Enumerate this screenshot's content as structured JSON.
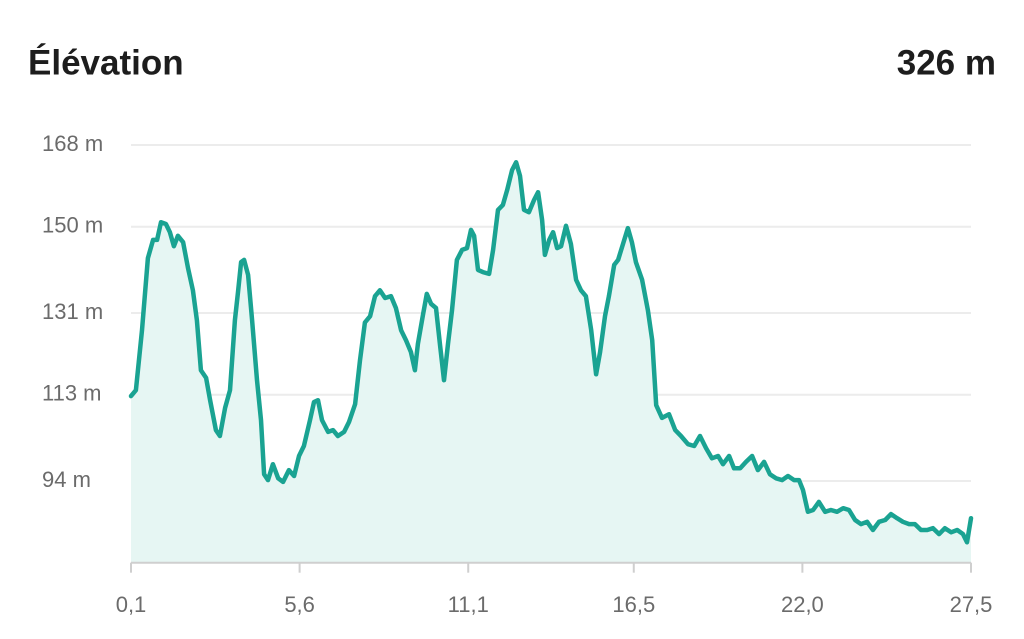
{
  "chart_data": {
    "type": "area",
    "title": "Élévation",
    "header_value": "326 m",
    "color": "#1aa392",
    "fill": "#e6f6f3",
    "grid": true,
    "xlim": [
      0.1,
      27.5
    ],
    "xticks": [
      {
        "value": 0.1,
        "label": "0,1"
      },
      {
        "value": 5.6,
        "label": "5,6"
      },
      {
        "value": 11.1,
        "label": "11,1"
      },
      {
        "value": 16.5,
        "label": "16,5"
      },
      {
        "value": 22.0,
        "label": "22,0"
      },
      {
        "value": 27.5,
        "label": "27,5"
      }
    ],
    "ylim": [
      76,
      168
    ],
    "yticks": [
      {
        "value": 168,
        "label": "168 m"
      },
      {
        "value": 150,
        "label": "150 m"
      },
      {
        "value": 131,
        "label": "131 m"
      },
      {
        "value": 113,
        "label": "113 m"
      },
      {
        "value": 94,
        "label": "94 m"
      }
    ],
    "x": [
      0.1,
      0.26,
      0.46,
      0.65,
      0.82,
      0.95,
      1.08,
      1.24,
      1.37,
      1.5,
      1.63,
      1.8,
      1.96,
      2.12,
      2.25,
      2.38,
      2.55,
      2.68,
      2.87,
      3.0,
      3.17,
      3.33,
      3.49,
      3.59,
      3.69,
      3.79,
      3.92,
      4.05,
      4.21,
      4.34,
      4.44,
      4.57,
      4.73,
      4.9,
      5.06,
      5.25,
      5.42,
      5.58,
      5.74,
      5.94,
      6.07,
      6.2,
      6.33,
      6.53,
      6.69,
      6.85,
      7.05,
      7.21,
      7.41,
      7.57,
      7.73,
      7.9,
      8.06,
      8.22,
      8.39,
      8.58,
      8.74,
      8.91,
      9.07,
      9.23,
      9.36,
      9.46,
      9.62,
      9.75,
      9.89,
      10.05,
      10.18,
      10.31,
      10.44,
      10.57,
      10.73,
      10.9,
      11.06,
      11.19,
      11.29,
      11.42,
      11.58,
      11.78,
      11.91,
      12.07,
      12.23,
      12.37,
      12.53,
      12.66,
      12.79,
      12.92,
      13.08,
      13.25,
      13.38,
      13.51,
      13.6,
      13.74,
      13.87,
      14.0,
      14.13,
      14.29,
      14.45,
      14.62,
      14.78,
      14.94,
      15.11,
      15.27,
      15.4,
      15.56,
      15.69,
      15.86,
      15.99,
      16.15,
      16.31,
      16.44,
      16.57,
      16.77,
      16.96,
      17.1,
      17.23,
      17.42,
      17.65,
      17.85,
      18.04,
      18.27,
      18.47,
      18.66,
      18.86,
      19.05,
      19.25,
      19.41,
      19.61,
      19.77,
      19.97,
      20.16,
      20.36,
      20.55,
      20.75,
      20.94,
      21.14,
      21.34,
      21.53,
      21.73,
      21.89,
      22.02,
      22.18,
      22.35,
      22.54,
      22.74,
      22.93,
      23.13,
      23.33,
      23.52,
      23.72,
      23.91,
      24.11,
      24.3,
      24.5,
      24.7,
      24.89,
      25.09,
      25.28,
      25.48,
      25.67,
      25.87,
      26.07,
      26.26,
      26.46,
      26.65,
      26.85,
      27.05,
      27.24,
      27.37,
      27.5
    ],
    "values": [
      112.7,
      114.0,
      127.2,
      143.1,
      147.1,
      147.1,
      151.0,
      150.6,
      148.8,
      145.7,
      148.0,
      146.6,
      140.9,
      136.0,
      129.4,
      118.4,
      116.7,
      111.8,
      105.2,
      103.9,
      110.1,
      114.0,
      129.4,
      135.6,
      142.2,
      142.7,
      139.4,
      129.4,
      116.2,
      107.4,
      95.5,
      94.2,
      97.7,
      94.6,
      93.8,
      96.4,
      95.1,
      99.5,
      101.7,
      107.4,
      111.4,
      111.8,
      107.4,
      104.8,
      105.2,
      103.9,
      104.8,
      107.0,
      110.9,
      120.6,
      128.9,
      130.3,
      134.7,
      136.0,
      134.3,
      134.7,
      132.1,
      127.2,
      125.0,
      122.4,
      118.4,
      124.2,
      130.5,
      135.2,
      133.0,
      132.1,
      124.0,
      116.2,
      124.2,
      131.6,
      142.7,
      144.9,
      145.3,
      149.3,
      148.0,
      140.5,
      140.0,
      139.6,
      144.9,
      153.7,
      154.8,
      158.1,
      162.5,
      164.2,
      161.2,
      153.7,
      153.2,
      155.9,
      157.6,
      151.5,
      143.8,
      147.1,
      148.8,
      145.3,
      145.7,
      150.2,
      146.2,
      138.3,
      136.0,
      134.7,
      127.2,
      117.5,
      122.4,
      130.3,
      134.7,
      141.6,
      142.7,
      146.2,
      149.7,
      146.6,
      142.2,
      138.3,
      131.6,
      125.0,
      110.7,
      107.9,
      108.7,
      105.2,
      103.9,
      102.1,
      101.7,
      103.9,
      101.2,
      99.0,
      99.5,
      97.7,
      99.5,
      96.8,
      96.8,
      98.2,
      99.5,
      96.4,
      98.2,
      95.5,
      94.6,
      94.2,
      95.1,
      94.2,
      94.2,
      92.0,
      87.2,
      87.6,
      89.4,
      87.2,
      87.6,
      87.2,
      88.0,
      87.6,
      85.4,
      84.5,
      85.0,
      83.2,
      85.0,
      85.4,
      86.7,
      85.8,
      85.0,
      84.5,
      84.5,
      83.2,
      83.2,
      83.6,
      82.3,
      83.6,
      82.7,
      83.2,
      82.3,
      80.5,
      85.8
    ]
  }
}
